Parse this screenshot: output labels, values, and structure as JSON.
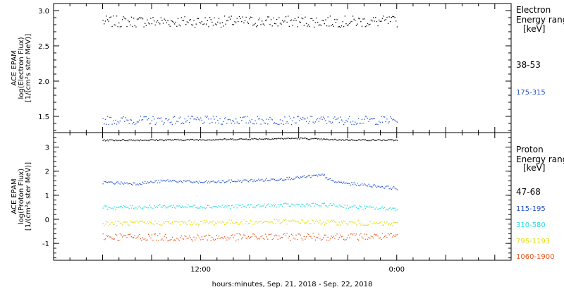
{
  "xlabel": "hours:minutes, Sep. 21, 2018 - Sep. 22, 2018",
  "x_ticks": [
    {
      "hours": 12,
      "label": "12:00"
    },
    {
      "hours": 24,
      "label": "0:00"
    }
  ],
  "chart_data": [
    {
      "type": "scatter",
      "ylabel": [
        "ACE EPAM",
        "log(Electron Flux)",
        "[1/(cm²s ster MeV)]"
      ],
      "ylim": [
        1.27,
        3.1
      ],
      "xlim_hours": [
        3,
        31
      ],
      "y_ticks": [
        {
          "value": 1.5,
          "label": "1.5"
        },
        {
          "value": 2.0,
          "label": "2.0"
        },
        {
          "value": 2.5,
          "label": "2.5"
        },
        {
          "value": 3.0,
          "label": "3.0"
        }
      ],
      "legend": {
        "title": [
          "Electron",
          "Energy ranges",
          "[keV]"
        ],
        "placement": "right"
      },
      "series": [
        {
          "name": "38-53",
          "color": "#000000",
          "x_hours": [
            6.0,
            24.0
          ],
          "mean": 2.85,
          "spread": 0.08
        },
        {
          "name": "175-315",
          "color": "#1f4fd1",
          "x_hours": [
            6.0,
            24.0
          ],
          "mean": 1.45,
          "spread": 0.06
        }
      ]
    },
    {
      "type": "scatter",
      "ylabel": [
        "ACE EPAM",
        "log(Proton Flux)",
        "[1/(cm²s ster MeV)]"
      ],
      "ylim": [
        -1.7,
        3.6
      ],
      "xlim_hours": [
        3,
        31
      ],
      "y_ticks": [
        {
          "value": -1,
          "label": "-1"
        },
        {
          "value": 0,
          "label": "0"
        },
        {
          "value": 1,
          "label": "1"
        },
        {
          "value": 2,
          "label": "2"
        },
        {
          "value": 3,
          "label": "3"
        }
      ],
      "legend": {
        "title": [
          "Proton",
          "Energy ranges",
          "[keV]"
        ],
        "placement": "right"
      },
      "series": [
        {
          "name": "47-68",
          "color": "#000000",
          "x_hours": [
            6.0,
            24.0
          ],
          "profile": [
            [
              6,
              3.3
            ],
            [
              12,
              3.32
            ],
            [
              18,
              3.38
            ],
            [
              20,
              3.32
            ],
            [
              24,
              3.3
            ]
          ],
          "spread": 0.03
        },
        {
          "name": "115-195",
          "color": "#1f4fd1",
          "x_hours": [
            6.0,
            24.0
          ],
          "profile": [
            [
              6,
              1.55
            ],
            [
              8,
              1.5
            ],
            [
              10,
              1.62
            ],
            [
              12,
              1.55
            ],
            [
              14,
              1.6
            ],
            [
              16,
              1.65
            ],
            [
              18,
              1.75
            ],
            [
              19.5,
              1.85
            ],
            [
              20,
              1.6
            ],
            [
              21,
              1.5
            ],
            [
              22,
              1.45
            ],
            [
              24,
              1.3
            ]
          ],
          "spread": 0.06
        },
        {
          "name": "310-580",
          "color": "#22dddd",
          "x_hours": [
            6.0,
            24.0
          ],
          "profile": [
            [
              6,
              0.5
            ],
            [
              10,
              0.55
            ],
            [
              14,
              0.55
            ],
            [
              18,
              0.62
            ],
            [
              20,
              0.6
            ],
            [
              22,
              0.5
            ],
            [
              24,
              0.45
            ]
          ],
          "spread": 0.08
        },
        {
          "name": "795-1193",
          "color": "#dddd00",
          "x_hours": [
            6.0,
            24.0
          ],
          "profile": [
            [
              6,
              -0.15
            ],
            [
              12,
              -0.12
            ],
            [
              18,
              -0.08
            ],
            [
              24,
              -0.18
            ]
          ],
          "spread": 0.1
        },
        {
          "name": "1060-1900",
          "color": "#e8541a",
          "x_hours": [
            6.0,
            24.0
          ],
          "profile": [
            [
              6,
              -0.7
            ],
            [
              12,
              -0.75
            ],
            [
              18,
              -0.7
            ],
            [
              24,
              -0.7
            ]
          ],
          "spread": 0.15
        }
      ]
    }
  ]
}
